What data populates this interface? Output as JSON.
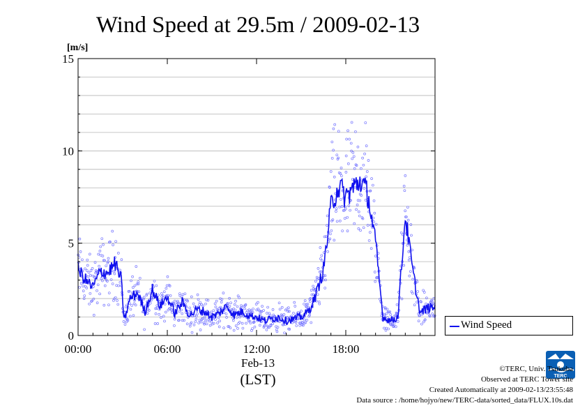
{
  "chart_data": {
    "type": "line",
    "title": "Wind Speed at 29.5m / 2009-02-13",
    "ylabel": "[m/s]",
    "ylim": [
      0,
      15
    ],
    "yticks": [
      "0",
      "5",
      "10",
      "15"
    ],
    "xlim_hours": [
      0,
      24
    ],
    "xticks": [
      {
        "hour": 0,
        "label": "00:00"
      },
      {
        "hour": 6,
        "label": "06:00"
      },
      {
        "hour": 12,
        "label": "12:00"
      },
      {
        "hour": 18,
        "label": "18:00"
      }
    ],
    "xlabel_date": "Feb-13",
    "xlabel_unit": "(LST)",
    "grid": true,
    "legend": "right",
    "series": [
      {
        "name": "Wind Speed",
        "color": "#1010ee",
        "scatter_color": "#7777ff",
        "x_hours": [
          0.0,
          0.5,
          1.0,
          1.5,
          2.0,
          2.5,
          2.9,
          3.1,
          3.5,
          4.0,
          4.5,
          5.0,
          5.5,
          6.0,
          6.5,
          7.0,
          7.5,
          8.0,
          8.5,
          9.0,
          9.5,
          10.0,
          10.5,
          11.0,
          11.5,
          12.0,
          12.5,
          13.0,
          13.5,
          14.0,
          14.5,
          15.0,
          15.5,
          16.0,
          16.5,
          16.8,
          17.0,
          17.5,
          18.0,
          18.5,
          19.0,
          19.5,
          20.0,
          20.5,
          21.0,
          21.5,
          22.0,
          22.5,
          23.0,
          23.5
        ],
        "values": [
          3.6,
          3.0,
          2.6,
          3.5,
          3.4,
          3.9,
          3.0,
          0.8,
          2.0,
          2.3,
          1.3,
          2.5,
          1.6,
          2.1,
          1.2,
          1.8,
          1.1,
          1.4,
          1.3,
          1.0,
          1.2,
          1.6,
          1.1,
          1.3,
          1.1,
          1.0,
          0.8,
          0.9,
          1.0,
          0.8,
          0.9,
          1.0,
          1.3,
          2.2,
          3.6,
          5.5,
          7.0,
          8.1,
          7.5,
          8.0,
          8.4,
          7.6,
          5.0,
          1.0,
          0.8,
          1.0,
          6.5,
          3.5,
          1.2,
          1.5
        ]
      }
    ]
  },
  "legend": {
    "label": "Wind Speed"
  },
  "footer": {
    "copyright": "©TERC, Univ. Tsukuba",
    "observed": "Observed at TERC Tower site",
    "created": "Created Automatically at 2009-02-13/23:55:48",
    "source": "Data source : /home/hojyo/new/TERC-data/sorted_data/FLUX.10s.dat"
  },
  "logo": {
    "text": "TERC",
    "color": "#0a5fb4"
  }
}
